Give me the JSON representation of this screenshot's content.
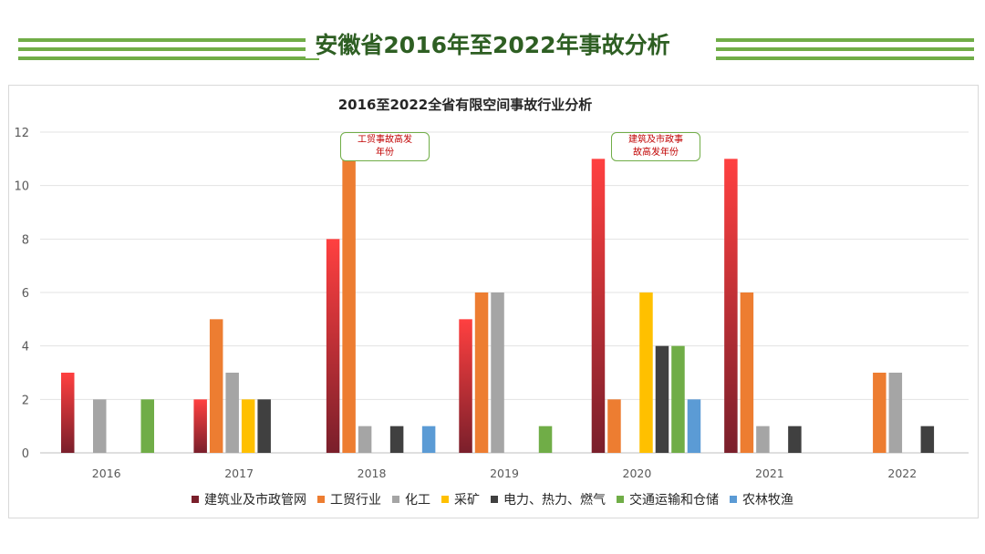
{
  "header": {
    "title": "安徽省2016年至2022年事故分析"
  },
  "annotations": [
    {
      "text": "工贸事故高发年份",
      "lines": [
        "工贸事故高发",
        "年份"
      ]
    },
    {
      "text": "建筑及市政事故高发年份",
      "lines": [
        "建筑及市政事",
        "故高发年份"
      ]
    }
  ],
  "chart_data": {
    "type": "bar",
    "title": "2016至2022全省有限空间事故行业分析",
    "xlabel": "",
    "ylabel": "",
    "ylim": [
      0,
      12
    ],
    "yticks": [
      0,
      2,
      4,
      6,
      8,
      10,
      12
    ],
    "grid": true,
    "legend_position": "bottom",
    "categories": [
      "2016",
      "2017",
      "2018",
      "2019",
      "2020",
      "2021",
      "2022"
    ],
    "series": [
      {
        "name": "建筑业及市政管网",
        "color": "#ff4040",
        "color_dark": "#7a1f2b",
        "values": [
          3,
          2,
          8,
          5,
          11,
          11,
          0
        ]
      },
      {
        "name": "工贸行业",
        "color": "#ed7d31",
        "values": [
          0,
          5,
          11,
          6,
          2,
          6,
          3
        ]
      },
      {
        "name": "化工",
        "color": "#a5a5a5",
        "values": [
          2,
          3,
          1,
          6,
          0,
          1,
          3
        ]
      },
      {
        "name": "采矿",
        "color": "#ffc000",
        "values": [
          0,
          2,
          0,
          0,
          6,
          0,
          0
        ]
      },
      {
        "name": "电力、热力、燃气",
        "color": "#404040",
        "values": [
          0,
          2,
          1,
          0,
          4,
          1,
          1
        ]
      },
      {
        "name": "交通运输和仓储",
        "color": "#70ad47",
        "values": [
          2,
          0,
          0,
          1,
          4,
          0,
          0
        ]
      },
      {
        "name": "农林牧渔",
        "color": "#5b9bd5",
        "values": [
          0,
          0,
          1,
          0,
          2,
          0,
          0
        ]
      }
    ]
  }
}
